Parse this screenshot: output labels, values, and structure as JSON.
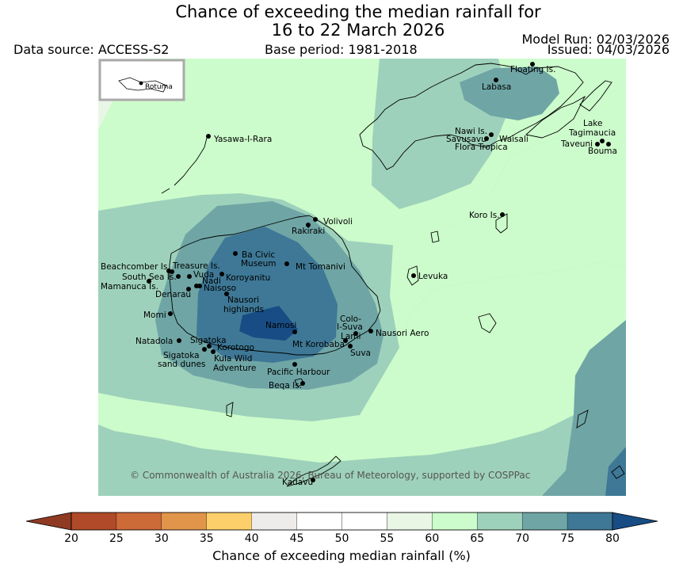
{
  "title": {
    "line1": "Chance of exceeding the median rainfall for",
    "line2": "16 to 22 March 2026"
  },
  "header": {
    "data_source": "Data source: ACCESS-S2",
    "base_period": "Base period: 1981-2018",
    "model_run": "Model Run: 02/03/2026",
    "issued": "Issued: 04/03/2026"
  },
  "inset": {
    "label": "Rotuma"
  },
  "copyright": "© Commonwealth of Australia 2026, Bureau of Meteorology, supported by COSPPac",
  "places": {
    "floating": "Floating Is.",
    "labasa": "Labasa",
    "yasawa": "Yasawa-I-Rara",
    "nawi": "Nawi Is.",
    "savusavu": "Savusavu",
    "waisali": "Waisali",
    "flora": "Flora Tropica",
    "lake": "Lake",
    "tagimaucia": "Tagimaucia",
    "taveuni": "Taveuni",
    "bouma": "Bouma",
    "koro": "Koro Is.",
    "volivoli": "Volivoli",
    "rakiraki": "Rakiraki",
    "ba_civic_1": "Ba Civic",
    "ba_civic_2": "Museum",
    "tomanivi": "Mt Tomanivi",
    "beachcomber": "Beachcomber Is.",
    "treasure": "Treasure Is.",
    "south_sea": "South Sea Is.",
    "vuda": "Vuda",
    "koroyanitu": "Koroyanitu",
    "mamanuca": "Mamanuca Is.",
    "nadi": "Nadi",
    "naisoso": "Naisoso",
    "denarau": "Denarau",
    "nausori_high_1": "Nausori",
    "nausori_high_2": "highlands",
    "levuka": "Levuka",
    "momi": "Momi",
    "namosi": "Namosi",
    "colo_1": "Colo-",
    "colo_2": "I-Suva",
    "nausori_aero": "Nausori Aero",
    "natadola": "Natadola",
    "sigatoka": "Sigatoka",
    "korotogo": "Korotogo",
    "lami": "Lami",
    "korobaba": "Mt Korobaba",
    "suva": "Suva",
    "sig_dunes_1": "Sigatoka",
    "sig_dunes_2": "sand dunes",
    "kula_1": "Kula Wild",
    "kula_2": "Adventure",
    "pacific": "Pacific Harbour",
    "beqa": "Beqa Is.",
    "kadavu": "Kadavu"
  },
  "legend": {
    "label": "Chance of exceeding median rainfall (%)",
    "ticks": [
      "20",
      "25",
      "30",
      "35",
      "40",
      "45",
      "50",
      "55",
      "60",
      "65",
      "70",
      "75",
      "80"
    ],
    "colors": [
      "#b04a28",
      "#cc6a38",
      "#e0954a",
      "#fdcf6b",
      "#eeeceb",
      "#ffffff",
      "#ffffff",
      "#e9f6e6",
      "#ccfccb",
      "#9ed1bb",
      "#6fa5a5",
      "#3e7896"
    ],
    "low_color": "#8f3a22",
    "high_color": "#174c84"
  },
  "colors": {
    "c65": "#ccfccb",
    "c70": "#9ed1bb",
    "c75": "#6fa5a5",
    "c80": "#3e7896",
    "c85": "#174c84",
    "c55": "#e9f6e6"
  }
}
